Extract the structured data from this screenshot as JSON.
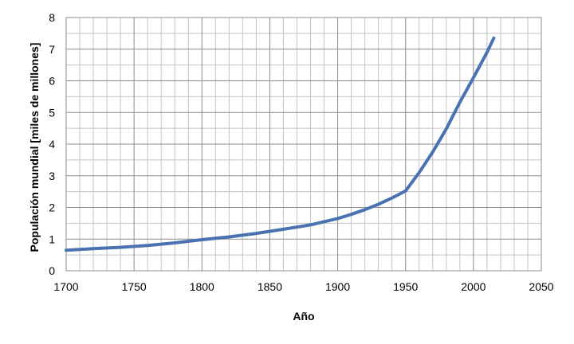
{
  "chart_data": {
    "type": "line",
    "title": "",
    "xlabel": "Año",
    "ylabel": "Populación  mundial [miles de millones]",
    "xlim": [
      1700,
      2050
    ],
    "ylim": [
      0,
      8
    ],
    "x_ticks": [
      1700,
      1750,
      1800,
      1850,
      1900,
      1950,
      2000,
      2050
    ],
    "y_ticks": [
      0,
      1,
      2,
      3,
      4,
      5,
      6,
      7,
      8
    ],
    "x_tick_labels": [
      "1700",
      "1750",
      "1800",
      "1850",
      "1900",
      "1950",
      "2000",
      "2050"
    ],
    "y_tick_labels": [
      "0",
      "1",
      "2",
      "3",
      "4",
      "5",
      "6",
      "7",
      "8"
    ],
    "grid": {
      "major": true,
      "minor": true,
      "x_minor_step": 10,
      "y_minor_step": 0.5
    },
    "legend": "none",
    "series": [
      {
        "color": "#4a72b2",
        "x": [
          1700,
          1720,
          1740,
          1760,
          1780,
          1800,
          1820,
          1840,
          1860,
          1880,
          1900,
          1910,
          1920,
          1930,
          1940,
          1950,
          1960,
          1970,
          1980,
          1990,
          2000,
          2010,
          2015
        ],
        "y": [
          0.65,
          0.7,
          0.74,
          0.8,
          0.88,
          0.98,
          1.07,
          1.18,
          1.31,
          1.45,
          1.65,
          1.78,
          1.93,
          2.1,
          2.3,
          2.52,
          3.1,
          3.75,
          4.48,
          5.32,
          6.1,
          6.9,
          7.35
        ]
      }
    ]
  }
}
